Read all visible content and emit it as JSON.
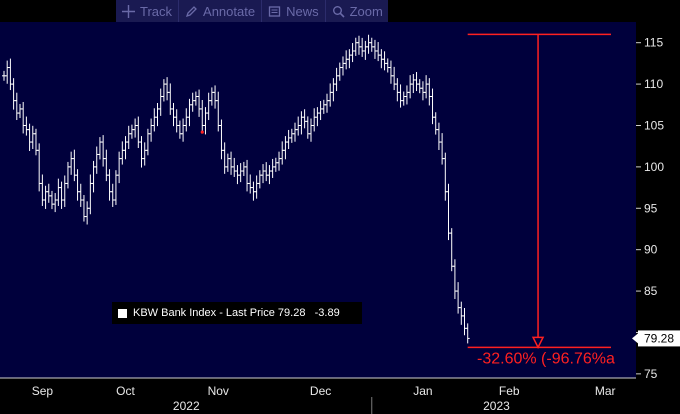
{
  "toolbar": {
    "track": "Track",
    "annotate": "Annotate",
    "news": "News",
    "zoom": "Zoom"
  },
  "legend": {
    "series": "KBW Bank Index - Last Price",
    "last_price": "79.28",
    "change": "-3.89"
  },
  "last_price_label": "79.28",
  "annotation": {
    "text": "-32.60% (-96.76%a",
    "color": "#ff2020"
  },
  "colors": {
    "background": "#000000",
    "plot": "#00003c",
    "price": "#ffffff",
    "annotation": "#ff2020"
  },
  "chart_data": {
    "type": "ohlc-bar",
    "y_ticks": [
      75,
      80,
      85,
      90,
      95,
      100,
      105,
      110,
      115
    ],
    "y_tick_labels": [
      "75",
      "",
      "85",
      "90",
      "95",
      "100",
      "105",
      "110",
      "115"
    ],
    "ylim": [
      74.5,
      117.5
    ],
    "xlim": [
      0,
      192
    ],
    "month_ticks": [
      {
        "label": "Sep",
        "x": 12
      },
      {
        "label": "Oct",
        "x": 38
      },
      {
        "label": "Nov",
        "x": 67
      },
      {
        "label": "Dec",
        "x": 99
      },
      {
        "label": "Jan",
        "x": 131
      },
      {
        "label": "Feb",
        "x": 158
      },
      {
        "label": "Mar",
        "x": 188
      }
    ],
    "year_labels": [
      {
        "label": "2022",
        "x": 57
      },
      {
        "label": "2023",
        "x": 154
      }
    ],
    "year_separator_x": 115,
    "peak": 116.0,
    "trough": 78.2,
    "drawdown_pct": -32.6,
    "close": [
      111,
      112,
      110,
      108,
      106.5,
      107,
      105,
      104.5,
      103,
      104,
      102,
      98,
      96,
      97,
      96.5,
      95.5,
      96,
      97.5,
      96,
      98,
      100,
      101,
      99,
      97,
      96,
      94,
      95,
      98,
      100,
      101.5,
      103,
      101,
      99,
      97,
      96,
      99,
      101,
      102,
      103,
      104,
      104.5,
      105,
      103,
      101,
      102,
      104,
      105,
      106,
      107,
      108.5,
      110,
      109,
      107,
      106,
      105,
      104,
      105,
      106,
      107.5,
      108,
      108.5,
      107,
      105,
      106.5,
      108,
      109,
      108,
      105,
      102,
      100,
      101,
      100,
      99.5,
      99,
      99.5,
      100,
      98,
      97.5,
      97,
      98,
      99,
      99.5,
      99,
      99.5,
      100,
      100.5,
      101,
      102,
      103,
      103.5,
      104,
      104.5,
      105,
      106,
      105.5,
      104,
      105,
      106,
      106.5,
      107,
      107.5,
      108,
      109,
      110,
      111,
      112,
      112.5,
      113,
      113.5,
      114,
      115,
      114.5,
      114,
      114.5,
      115,
      114.5,
      114,
      113.5,
      113,
      112.5,
      112,
      111,
      110,
      109,
      108,
      108.5,
      109,
      110,
      110.5,
      110,
      109.5,
      109,
      110,
      108.5,
      106,
      104.5,
      103,
      101,
      97,
      92,
      88,
      85,
      83,
      82,
      80.5,
      79.28
    ]
  }
}
